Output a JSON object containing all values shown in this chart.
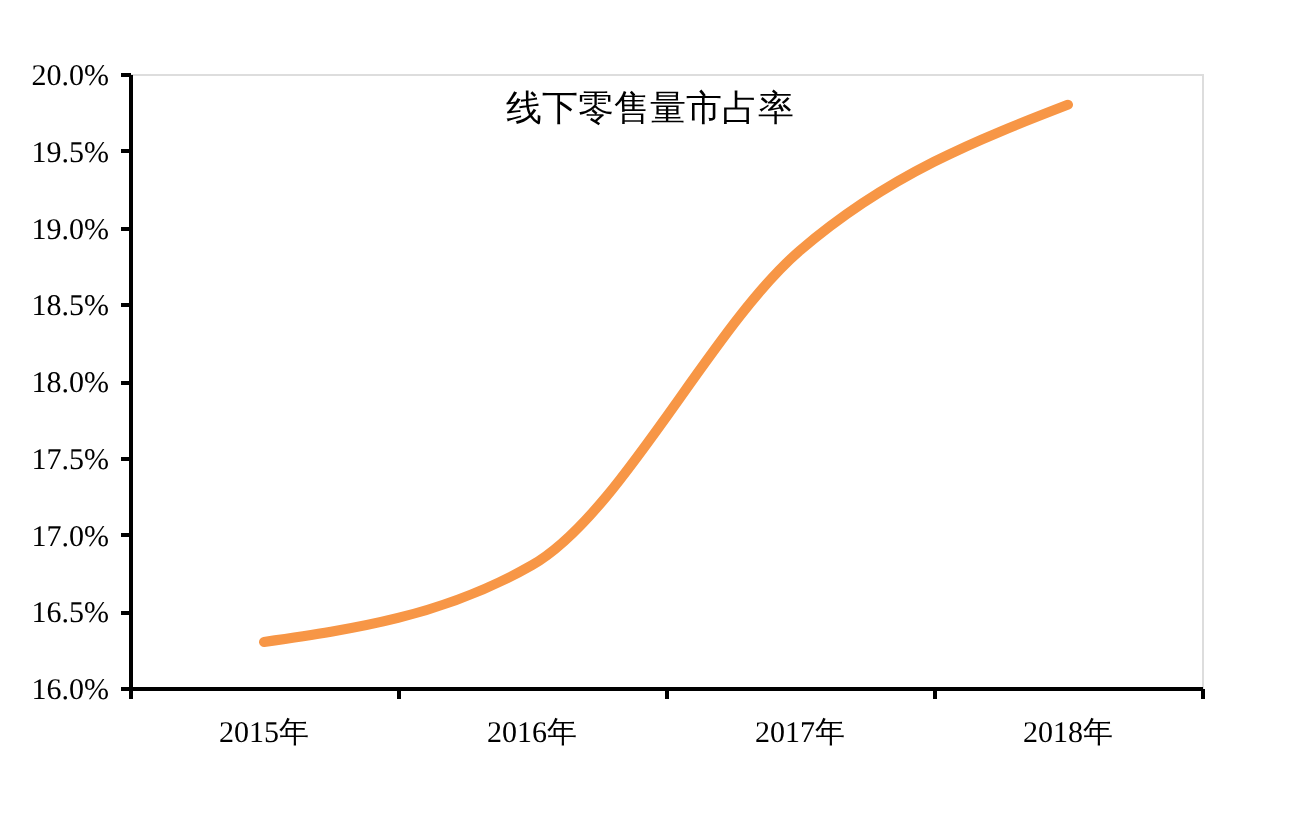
{
  "chart_data": {
    "type": "line",
    "title": "线下零售量市占率",
    "categories": [
      "2015年",
      "2016年",
      "2017年",
      "2018年"
    ],
    "series": [
      {
        "color": "#f79646",
        "values": [
          16.3,
          16.8,
          18.85,
          19.8
        ]
      }
    ],
    "ylim": [
      16,
      20
    ],
    "yticks": [
      {
        "value": 16,
        "label": "16.0%"
      },
      {
        "value": 16.5,
        "label": "16.5%"
      },
      {
        "value": 17,
        "label": "17.0%"
      },
      {
        "value": 17.5,
        "label": "17.5%"
      },
      {
        "value": 18,
        "label": "18.0%"
      },
      {
        "value": 18.5,
        "label": "18.5%"
      },
      {
        "value": 19,
        "label": "19.0%"
      },
      {
        "value": 19.5,
        "label": "19.5%"
      },
      {
        "value": 20,
        "label": "20.0%"
      }
    ],
    "grid": false,
    "legend": false,
    "marker": "none",
    "line_style": "solid"
  }
}
